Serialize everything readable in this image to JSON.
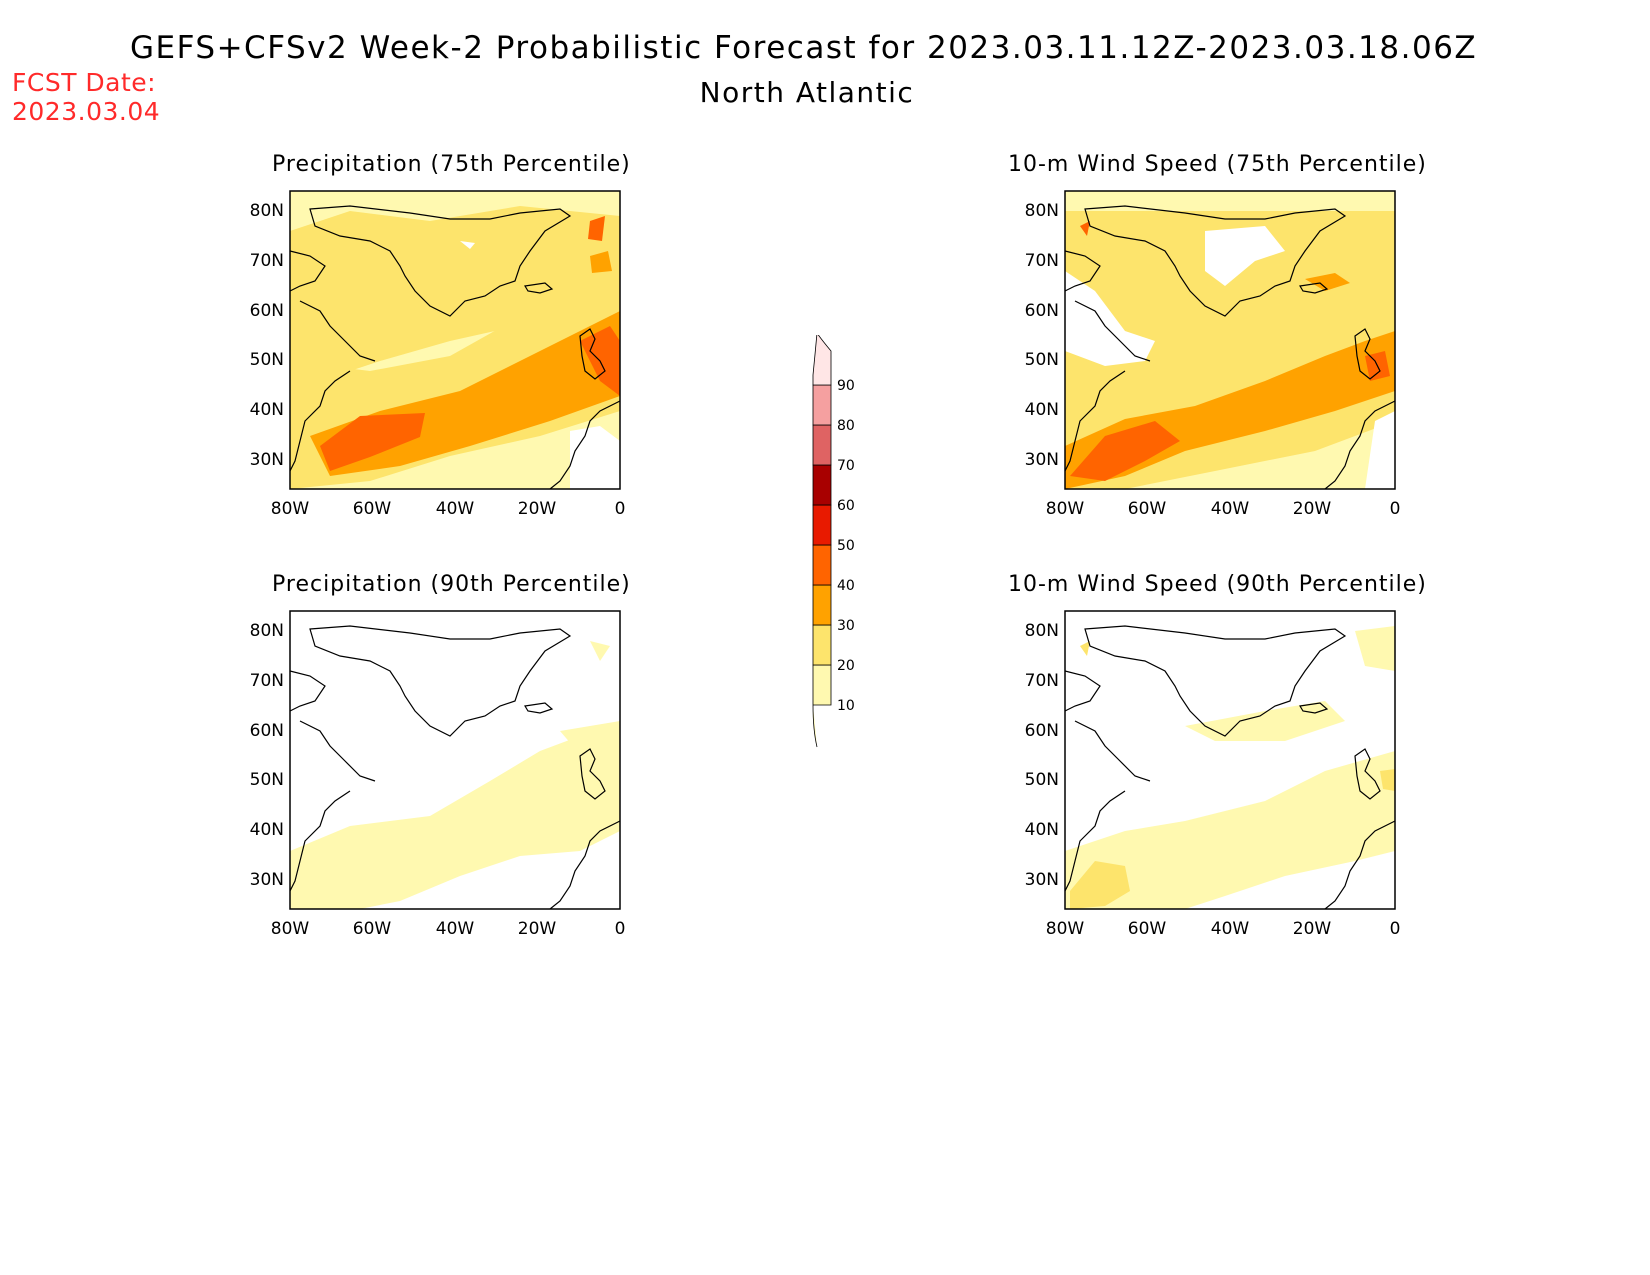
{
  "header": {
    "title": "GEFS+CFSv2 Week-2 Probabilistic Forecast for 2023.03.11.12Z-2023.03.18.06Z",
    "region": "North Atlantic",
    "fcst_label": "FCST Date:",
    "fcst_date": "2023.03.04"
  },
  "panels": [
    {
      "id": "precip75",
      "title": "Precipitation (75th Percentile)"
    },
    {
      "id": "wind75",
      "title": "10-m Wind Speed (75th Percentile)"
    },
    {
      "id": "precip90",
      "title": "Precipitation (90th Percentile)"
    },
    {
      "id": "wind90",
      "title": "10-m Wind Speed (90th Percentile)"
    }
  ],
  "map_axes": {
    "lat_ticks": [
      "80N",
      "70N",
      "60N",
      "50N",
      "40N",
      "30N"
    ],
    "lon_ticks": [
      "80W",
      "60W",
      "40W",
      "20W",
      "0"
    ],
    "lon_range": [
      -80,
      0
    ],
    "lat_range": [
      25,
      85
    ]
  },
  "colorbar": {
    "levels": [
      "10",
      "20",
      "30",
      "40",
      "50",
      "60",
      "70",
      "80",
      "90"
    ],
    "colors": [
      "#fff9b0",
      "#fde46c",
      "#ffa200",
      "#ff6400",
      "#e81a00",
      "#a80000",
      "#df6363",
      "#f5a0a0",
      "#ffe6e6"
    ]
  }
}
